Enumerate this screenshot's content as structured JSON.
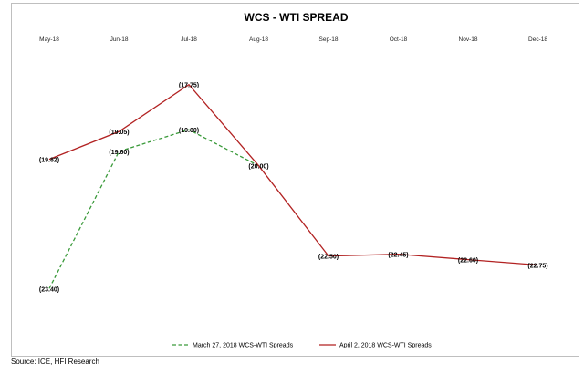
{
  "chart_data": {
    "type": "line",
    "title": "WCS - WTI SPREAD",
    "categories": [
      "May-18",
      "Jun-18",
      "Jul-18",
      "Aug-18",
      "Sep-18",
      "Oct-18",
      "Nov-18",
      "Dec-18"
    ],
    "ylim": [
      -24,
      -17
    ],
    "series": [
      {
        "name": "March 27, 2018 WCS-WTI Spreads",
        "color": "#3a9a3a",
        "dashed": true,
        "values": [
          -23.4,
          -19.6,
          -19.0,
          -20.0,
          null,
          null,
          null,
          null
        ],
        "labels": [
          "(23.40)",
          "(19.60)",
          "(19.00)",
          "",
          "",
          "",
          "",
          ""
        ]
      },
      {
        "name": "April 2, 2018 WCS-WTI Spreads",
        "color": "#b22222",
        "dashed": false,
        "values": [
          -19.82,
          -19.05,
          -17.75,
          -20.0,
          -22.5,
          -22.45,
          -22.6,
          -22.75
        ],
        "labels": [
          "(19.82)",
          "(19.05)",
          "(17.75)",
          "(20.00)",
          "(22.50)",
          "(22.45)",
          "(22.60)",
          "(22.75)"
        ]
      }
    ],
    "legend_position": "bottom"
  },
  "source": "Source: ICE, HFI Research"
}
